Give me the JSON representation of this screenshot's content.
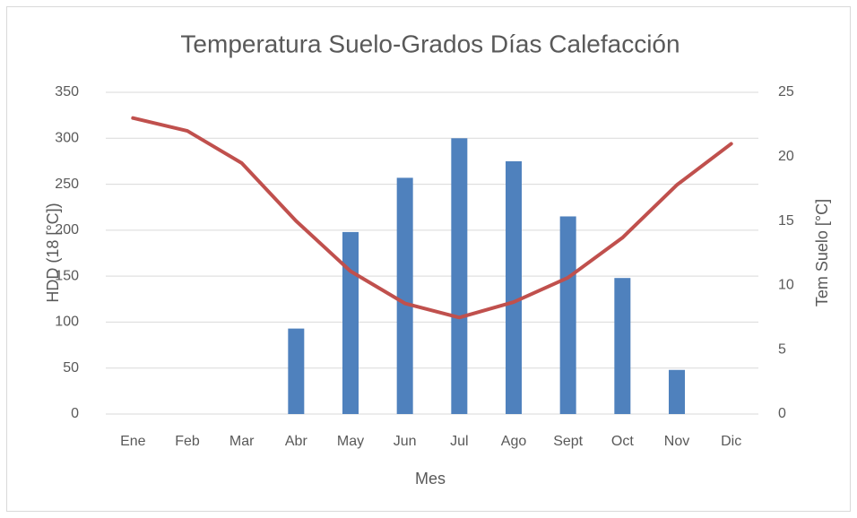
{
  "chart_data": {
    "type": "bar",
    "title": "Temperatura Suelo-Grados Días Calefacción",
    "x_label": "Mes",
    "y_label": "HDD (18 [°C])",
    "y2_label": "Tem Suelo [°C]",
    "categories": [
      "Ene",
      "Feb",
      "Mar",
      "Abr",
      "May",
      "Jun",
      "Jul",
      "Ago",
      "Sept",
      "Oct",
      "Nov",
      "Dic"
    ],
    "series": [
      {
        "type": "bar",
        "color": "#4f81bd",
        "values": [
          0,
          0,
          0,
          93,
          198,
          257,
          300,
          275,
          215,
          148,
          48,
          0
        ]
      },
      {
        "type": "line",
        "axis": "y2",
        "color": "#c0504d",
        "values": [
          23.0,
          22.0,
          19.5,
          15.0,
          11.1,
          8.6,
          7.5,
          8.7,
          10.6,
          13.7,
          17.8,
          21.0
        ]
      }
    ],
    "ylim": [
      0,
      350
    ],
    "yticks": [
      0,
      50,
      100,
      150,
      200,
      250,
      300,
      350
    ],
    "y2lim": [
      0,
      25
    ],
    "y2ticks": [
      0,
      5,
      10,
      15,
      20,
      25
    ],
    "grid": true
  }
}
